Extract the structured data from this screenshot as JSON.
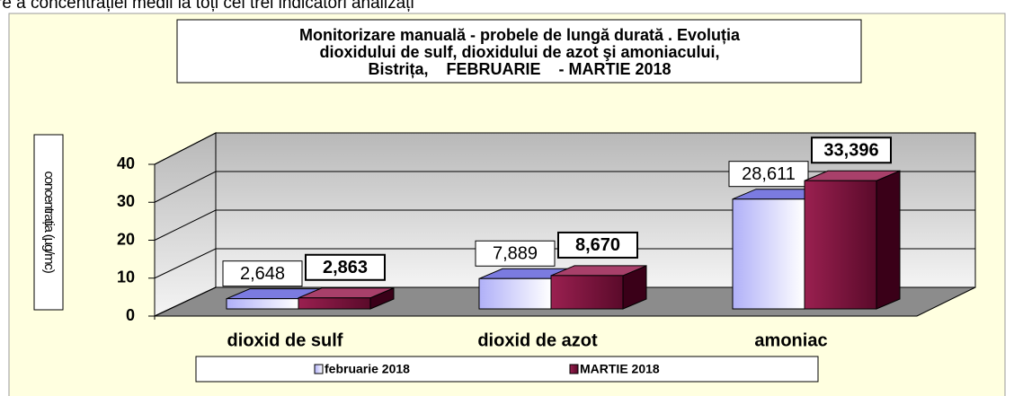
{
  "chart_data": {
    "type": "bar3d",
    "note": "re a concentrației medii la toți cei trei indicatori analizați",
    "title": [
      "Monitorizare manuală - probele de lungă durată . Evoluția",
      "dioxidului de sulf, dioxidului de azot şi amoniacului,",
      "Bistrița,    FEBRUARIE    - MARTIE 2018"
    ],
    "y_label": "concentrația (µg/mc)",
    "categories": [
      "dioxid de sulf",
      "dioxid de azot",
      "amoniac"
    ],
    "series": [
      {
        "name": "februarie 2018",
        "color": "#ccccff",
        "values": [
          2.648,
          7.889,
          28.611
        ],
        "value_labels": [
          "2,648",
          "7,889",
          "28,611"
        ]
      },
      {
        "name": "MARTIE 2018",
        "color": "#8b1a4a",
        "values": [
          2.863,
          8.67,
          33.396
        ],
        "value_labels": [
          "2,863",
          "8,670",
          "33,396"
        ]
      }
    ],
    "ylim": [
      0,
      40
    ],
    "yticks": [
      0,
      10,
      20,
      30,
      40
    ],
    "grid": true
  }
}
